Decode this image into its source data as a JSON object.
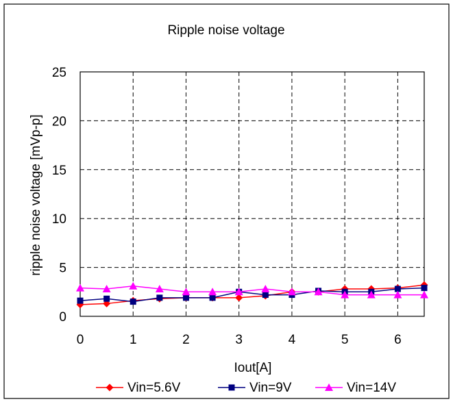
{
  "chart_data": {
    "type": "line",
    "title": "Ripple noise voltage",
    "xlabel": "Iout[A]",
    "ylabel": "ripple noise voltage  [mVp-p]",
    "xlim": [
      0,
      6.5
    ],
    "ylim": [
      0,
      25
    ],
    "x_ticks": [
      "0",
      "1",
      "2",
      "3",
      "4",
      "5",
      "6"
    ],
    "y_ticks": [
      "0",
      "5",
      "10",
      "15",
      "20",
      "25"
    ],
    "grid": true,
    "legend_position": "bottom",
    "x": [
      0,
      0.5,
      1,
      1.5,
      2,
      2.5,
      3,
      3.5,
      4,
      4.5,
      5,
      5.5,
      6,
      6.5
    ],
    "series": [
      {
        "name": "Vin=5.6V",
        "color": "#ff0000",
        "marker": "diamond",
        "values": [
          1.2,
          1.3,
          1.6,
          1.8,
          1.9,
          1.9,
          1.9,
          2.1,
          2.5,
          2.5,
          2.8,
          2.8,
          2.9,
          3.2
        ]
      },
      {
        "name": "Vin=9V",
        "color": "#000080",
        "marker": "square",
        "values": [
          1.6,
          1.8,
          1.5,
          1.9,
          1.9,
          1.9,
          2.5,
          2.2,
          2.2,
          2.6,
          2.5,
          2.5,
          2.8,
          2.9
        ]
      },
      {
        "name": "Vin=14V",
        "color": "#ff00ff",
        "marker": "triangle",
        "values": [
          2.9,
          2.8,
          3.1,
          2.8,
          2.5,
          2.5,
          2.5,
          2.8,
          2.5,
          2.5,
          2.2,
          2.2,
          2.2,
          2.2
        ]
      }
    ]
  }
}
